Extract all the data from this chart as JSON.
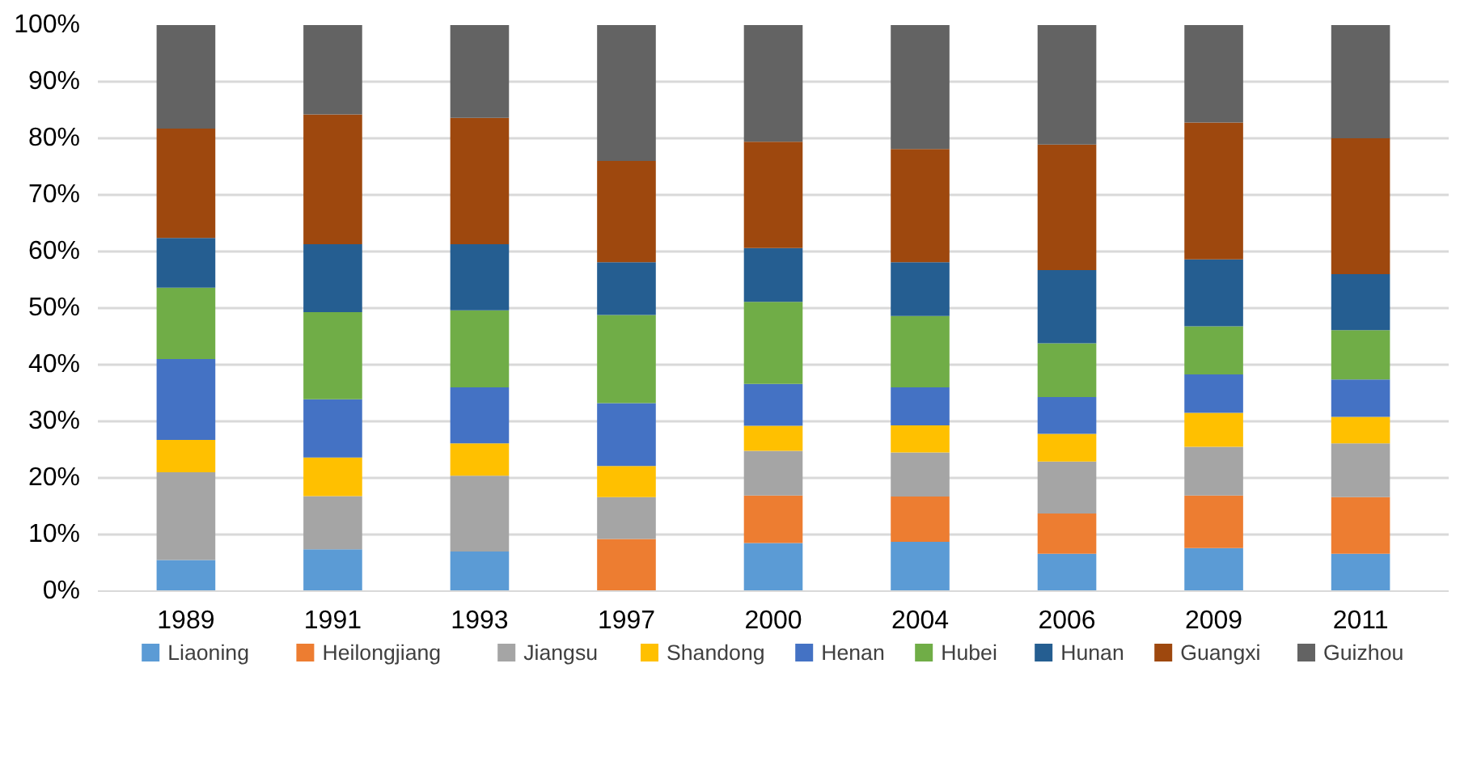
{
  "chart_data": {
    "type": "bar",
    "stacked": true,
    "categories": [
      "1989",
      "1991",
      "1993",
      "1997",
      "2000",
      "2004",
      "2006",
      "2009",
      "2011"
    ],
    "series": [
      {
        "name": "Liaoning",
        "color": "#5b9bd5",
        "values": [
          5.5,
          7.4,
          7.0,
          0,
          8.5,
          8.7,
          6.6,
          7.6,
          6.6
        ]
      },
      {
        "name": "Heilongjiang",
        "color": "#ed7d31",
        "values": [
          0,
          0,
          0,
          9.2,
          8.4,
          8.0,
          7.1,
          9.3,
          10.0
        ]
      },
      {
        "name": "Jiangsu",
        "color": "#a5a5a5",
        "values": [
          15.5,
          9.4,
          13.4,
          7.4,
          7.9,
          7.8,
          9.2,
          8.6,
          9.5
        ]
      },
      {
        "name": "Shandong",
        "color": "#ffc000",
        "values": [
          5.7,
          6.8,
          5.7,
          5.5,
          4.4,
          4.8,
          4.9,
          6.0,
          4.7
        ]
      },
      {
        "name": "Henan",
        "color": "#4472c4",
        "values": [
          14.3,
          10.3,
          9.9,
          11.1,
          7.4,
          6.7,
          6.5,
          6.8,
          6.6
        ]
      },
      {
        "name": "Hubei",
        "color": "#70ad47",
        "values": [
          12.6,
          15.4,
          13.6,
          15.6,
          14.5,
          12.6,
          9.5,
          8.5,
          8.7
        ]
      },
      {
        "name": "Hunan",
        "color": "#255e91",
        "values": [
          8.8,
          12.0,
          11.7,
          9.3,
          9.5,
          9.5,
          12.9,
          11.8,
          9.9
        ]
      },
      {
        "name": "Guangxi",
        "color": "#9e480e",
        "values": [
          19.3,
          22.9,
          22.3,
          17.9,
          18.8,
          20.0,
          22.2,
          24.2,
          24.0
        ]
      },
      {
        "name": "Guizhou",
        "color": "#636363",
        "values": [
          18.3,
          15.8,
          16.4,
          24.0,
          20.6,
          21.9,
          21.1,
          17.2,
          20.0
        ]
      }
    ],
    "ylim": [
      0,
      100
    ],
    "yticks": [
      {
        "value": 0,
        "label": "0%"
      },
      {
        "value": 10,
        "label": "10%"
      },
      {
        "value": 20,
        "label": "20%"
      },
      {
        "value": 30,
        "label": "30%"
      },
      {
        "value": 40,
        "label": "40%"
      },
      {
        "value": 50,
        "label": "50%"
      },
      {
        "value": 60,
        "label": "60%"
      },
      {
        "value": 70,
        "label": "70%"
      },
      {
        "value": 80,
        "label": "80%"
      },
      {
        "value": 90,
        "label": "90%"
      },
      {
        "value": 100,
        "label": "100%"
      }
    ],
    "grid": "y",
    "legend": "bottom"
  }
}
